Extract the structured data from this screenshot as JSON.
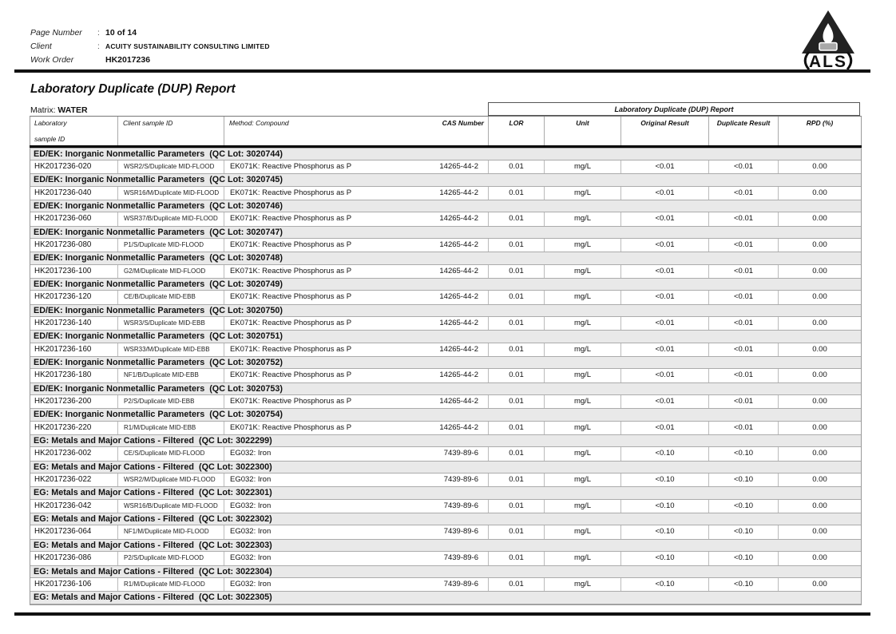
{
  "header": {
    "fields": [
      {
        "label": "Page Number",
        "colon": ":",
        "value": "10 of 14"
      },
      {
        "label": "Client",
        "colon": ":",
        "value": "ACUITY SUSTAINABILITY CONSULTING LIMITED"
      },
      {
        "label": "Work Order",
        "colon": "",
        "value": "HK2017236"
      }
    ],
    "logo_text": "ALS"
  },
  "title": "Laboratory Duplicate (DUP) Report",
  "matrix": {
    "label": "Matrix:",
    "value": "WATER"
  },
  "table": {
    "span_header": "Laboratory Duplicate (DUP) Report",
    "qc_label": "QC Lot",
    "columns": {
      "lab_line1": "Laboratory",
      "lab_line2": "sample ID",
      "client": "Client sample ID",
      "method": "Method: Compound",
      "cas": "CAS Number",
      "lor": "LOR",
      "unit": "Unit",
      "original": "Original Result",
      "duplicate": "Duplicate Result",
      "rpd": "RPD (%)"
    },
    "groups": [
      {
        "category": "ED/EK: Inorganic Nonmetallic Parameters",
        "qc_lot": "3020744",
        "rows": [
          {
            "lab_sample_id": "HK2017236-020",
            "client_sample_id": "WSR2/S/Duplicate MID-FLOOD",
            "method_compound": "EK071K: Reactive Phosphorus as P",
            "cas_number": "14265-44-2",
            "lor": "0.01",
            "unit": "mg/L",
            "original_result": "<0.01",
            "duplicate_result": "<0.01",
            "rpd": "0.00"
          }
        ]
      },
      {
        "category": "ED/EK: Inorganic Nonmetallic Parameters",
        "qc_lot": "3020745",
        "rows": [
          {
            "lab_sample_id": "HK2017236-040",
            "client_sample_id": "WSR16/M/Duplicate MID-FLOOD",
            "method_compound": "EK071K: Reactive Phosphorus as P",
            "cas_number": "14265-44-2",
            "lor": "0.01",
            "unit": "mg/L",
            "original_result": "<0.01",
            "duplicate_result": "<0.01",
            "rpd": "0.00"
          }
        ]
      },
      {
        "category": "ED/EK: Inorganic Nonmetallic Parameters",
        "qc_lot": "3020746",
        "rows": [
          {
            "lab_sample_id": "HK2017236-060",
            "client_sample_id": "WSR37/B/Duplicate MID-FLOOD",
            "method_compound": "EK071K: Reactive Phosphorus as P",
            "cas_number": "14265-44-2",
            "lor": "0.01",
            "unit": "mg/L",
            "original_result": "<0.01",
            "duplicate_result": "<0.01",
            "rpd": "0.00"
          }
        ]
      },
      {
        "category": "ED/EK: Inorganic Nonmetallic Parameters",
        "qc_lot": "3020747",
        "rows": [
          {
            "lab_sample_id": "HK2017236-080",
            "client_sample_id": "P1/S/Duplicate MID-FLOOD",
            "method_compound": "EK071K: Reactive Phosphorus as P",
            "cas_number": "14265-44-2",
            "lor": "0.01",
            "unit": "mg/L",
            "original_result": "<0.01",
            "duplicate_result": "<0.01",
            "rpd": "0.00"
          }
        ]
      },
      {
        "category": "ED/EK: Inorganic Nonmetallic Parameters",
        "qc_lot": "3020748",
        "rows": [
          {
            "lab_sample_id": "HK2017236-100",
            "client_sample_id": "G2/M/Duplicate MID-FLOOD",
            "method_compound": "EK071K: Reactive Phosphorus as P",
            "cas_number": "14265-44-2",
            "lor": "0.01",
            "unit": "mg/L",
            "original_result": "<0.01",
            "duplicate_result": "<0.01",
            "rpd": "0.00"
          }
        ]
      },
      {
        "category": "ED/EK: Inorganic Nonmetallic Parameters",
        "qc_lot": "3020749",
        "rows": [
          {
            "lab_sample_id": "HK2017236-120",
            "client_sample_id": "CE/B/Duplicate MID-EBB",
            "method_compound": "EK071K: Reactive Phosphorus as P",
            "cas_number": "14265-44-2",
            "lor": "0.01",
            "unit": "mg/L",
            "original_result": "<0.01",
            "duplicate_result": "<0.01",
            "rpd": "0.00"
          }
        ]
      },
      {
        "category": "ED/EK: Inorganic Nonmetallic Parameters",
        "qc_lot": "3020750",
        "rows": [
          {
            "lab_sample_id": "HK2017236-140",
            "client_sample_id": "WSR3/S/Duplicate MID-EBB",
            "method_compound": "EK071K: Reactive Phosphorus as P",
            "cas_number": "14265-44-2",
            "lor": "0.01",
            "unit": "mg/L",
            "original_result": "<0.01",
            "duplicate_result": "<0.01",
            "rpd": "0.00"
          }
        ]
      },
      {
        "category": "ED/EK: Inorganic Nonmetallic Parameters",
        "qc_lot": "3020751",
        "rows": [
          {
            "lab_sample_id": "HK2017236-160",
            "client_sample_id": "WSR33/M/Duplicate MID-EBB",
            "method_compound": "EK071K: Reactive Phosphorus as P",
            "cas_number": "14265-44-2",
            "lor": "0.01",
            "unit": "mg/L",
            "original_result": "<0.01",
            "duplicate_result": "<0.01",
            "rpd": "0.00"
          }
        ]
      },
      {
        "category": "ED/EK: Inorganic Nonmetallic Parameters",
        "qc_lot": "3020752",
        "rows": [
          {
            "lab_sample_id": "HK2017236-180",
            "client_sample_id": "NF1/B/Duplicate MID-EBB",
            "method_compound": "EK071K: Reactive Phosphorus as P",
            "cas_number": "14265-44-2",
            "lor": "0.01",
            "unit": "mg/L",
            "original_result": "<0.01",
            "duplicate_result": "<0.01",
            "rpd": "0.00"
          }
        ]
      },
      {
        "category": "ED/EK: Inorganic Nonmetallic Parameters",
        "qc_lot": "3020753",
        "rows": [
          {
            "lab_sample_id": "HK2017236-200",
            "client_sample_id": "P2/S/Duplicate MID-EBB",
            "method_compound": "EK071K: Reactive Phosphorus as P",
            "cas_number": "14265-44-2",
            "lor": "0.01",
            "unit": "mg/L",
            "original_result": "<0.01",
            "duplicate_result": "<0.01",
            "rpd": "0.00"
          }
        ]
      },
      {
        "category": "ED/EK: Inorganic Nonmetallic Parameters",
        "qc_lot": "3020754",
        "rows": [
          {
            "lab_sample_id": "HK2017236-220",
            "client_sample_id": "R1/M/Duplicate MID-EBB",
            "method_compound": "EK071K: Reactive Phosphorus as P",
            "cas_number": "14265-44-2",
            "lor": "0.01",
            "unit": "mg/L",
            "original_result": "<0.01",
            "duplicate_result": "<0.01",
            "rpd": "0.00"
          }
        ]
      },
      {
        "category": "EG: Metals and Major Cations - Filtered",
        "qc_lot": "3022299",
        "rows": [
          {
            "lab_sample_id": "HK2017236-002",
            "client_sample_id": "CE/S/Duplicate MID-FLOOD",
            "method_compound": "EG032: Iron",
            "cas_number": "7439-89-6",
            "lor": "0.01",
            "unit": "mg/L",
            "original_result": "<0.10",
            "duplicate_result": "<0.10",
            "rpd": "0.00"
          }
        ]
      },
      {
        "category": "EG: Metals and Major Cations - Filtered",
        "qc_lot": "3022300",
        "rows": [
          {
            "lab_sample_id": "HK2017236-022",
            "client_sample_id": "WSR2/M/Duplicate MID-FLOOD",
            "method_compound": "EG032: Iron",
            "cas_number": "7439-89-6",
            "lor": "0.01",
            "unit": "mg/L",
            "original_result": "<0.10",
            "duplicate_result": "<0.10",
            "rpd": "0.00"
          }
        ]
      },
      {
        "category": "EG: Metals and Major Cations - Filtered",
        "qc_lot": "3022301",
        "rows": [
          {
            "lab_sample_id": "HK2017236-042",
            "client_sample_id": "WSR16/B/Duplicate MID-FLOOD",
            "method_compound": "EG032: Iron",
            "cas_number": "7439-89-6",
            "lor": "0.01",
            "unit": "mg/L",
            "original_result": "<0.10",
            "duplicate_result": "<0.10",
            "rpd": "0.00"
          }
        ]
      },
      {
        "category": "EG: Metals and Major Cations - Filtered",
        "qc_lot": "3022302",
        "rows": [
          {
            "lab_sample_id": "HK2017236-064",
            "client_sample_id": "NF1/M/Duplicate MID-FLOOD",
            "method_compound": "EG032: Iron",
            "cas_number": "7439-89-6",
            "lor": "0.01",
            "unit": "mg/L",
            "original_result": "<0.10",
            "duplicate_result": "<0.10",
            "rpd": "0.00"
          }
        ]
      },
      {
        "category": "EG: Metals and Major Cations - Filtered",
        "qc_lot": "3022303",
        "rows": [
          {
            "lab_sample_id": "HK2017236-086",
            "client_sample_id": "P2/S/Duplicate MID-FLOOD",
            "method_compound": "EG032: Iron",
            "cas_number": "7439-89-6",
            "lor": "0.01",
            "unit": "mg/L",
            "original_result": "<0.10",
            "duplicate_result": "<0.10",
            "rpd": "0.00"
          }
        ]
      },
      {
        "category": "EG: Metals and Major Cations - Filtered",
        "qc_lot": "3022304",
        "rows": [
          {
            "lab_sample_id": "HK2017236-106",
            "client_sample_id": "R1/M/Duplicate MID-FLOOD",
            "method_compound": "EG032: Iron",
            "cas_number": "7439-89-6",
            "lor": "0.01",
            "unit": "mg/L",
            "original_result": "<0.10",
            "duplicate_result": "<0.10",
            "rpd": "0.00"
          }
        ]
      },
      {
        "category": "EG: Metals and Major Cations - Filtered",
        "qc_lot": "3022305",
        "rows": []
      }
    ]
  },
  "colors": {
    "band_gray": "#e9e9e9",
    "rule_black": "#111111",
    "logo_dark": "#222222"
  }
}
